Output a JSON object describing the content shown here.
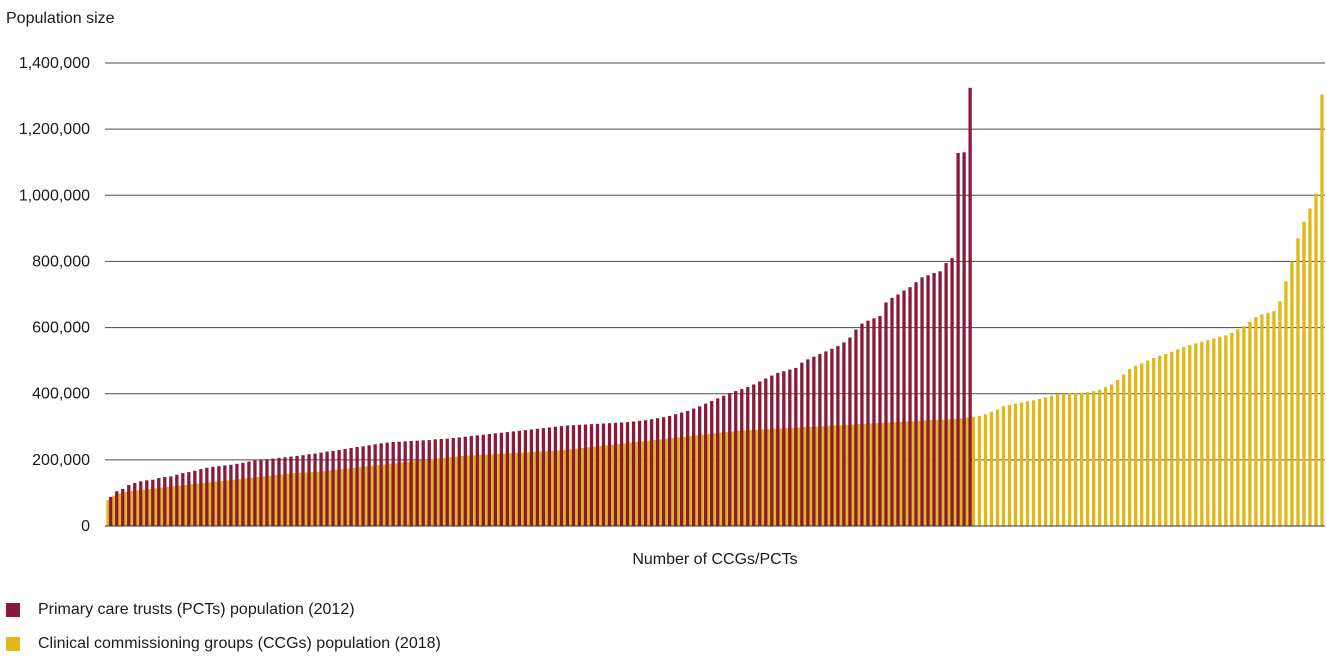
{
  "chart_data": {
    "type": "bar",
    "title": "",
    "ylabel": "Population size",
    "xlabel": "Number of CCGs/PCTs",
    "ylim": [
      0,
      1400000
    ],
    "yticks": [
      {
        "value": 0,
        "label": "0"
      },
      {
        "value": 200000,
        "label": "200,000"
      },
      {
        "value": 400000,
        "label": "400,000"
      },
      {
        "value": 600000,
        "label": "600,000"
      },
      {
        "value": 800000,
        "label": "800,000"
      },
      {
        "value": 1000000,
        "label": "1,000,000"
      },
      {
        "value": 1200000,
        "label": "1,200,000"
      },
      {
        "value": 1400000,
        "label": "1,400,000"
      }
    ],
    "grid": true,
    "legend_position": "bottom-left",
    "series": [
      {
        "name": "Primary care trusts (PCTs) population (2012)",
        "color": "#8b1a3a",
        "values": [
          88000,
          105000,
          112000,
          124000,
          130000,
          135000,
          138000,
          140000,
          145000,
          148000,
          150000,
          155000,
          160000,
          163000,
          167000,
          172000,
          176000,
          179000,
          181000,
          183000,
          185000,
          188000,
          191000,
          195000,
          198000,
          200000,
          202000,
          204000,
          206000,
          208000,
          210000,
          212000,
          214000,
          217000,
          219000,
          222000,
          225000,
          227000,
          230000,
          233000,
          236000,
          239000,
          241000,
          244000,
          247000,
          250000,
          252000,
          254000,
          255000,
          256000,
          257000,
          258000,
          259000,
          260000,
          262000,
          263000,
          264000,
          266000,
          268000,
          270000,
          272000,
          274000,
          276000,
          278000,
          280000,
          282000,
          284000,
          286000,
          288000,
          290000,
          292000,
          294000,
          296000,
          298000,
          300000,
          302000,
          304000,
          305000,
          306000,
          307000,
          308000,
          309000,
          310000,
          311000,
          312000,
          313000,
          314000,
          316000,
          318000,
          320000,
          323000,
          326000,
          329000,
          333000,
          338000,
          343000,
          348000,
          355000,
          362000,
          370000,
          378000,
          386000,
          394000,
          402000,
          408000,
          414000,
          420000,
          428000,
          437000,
          446000,
          455000,
          463000,
          468000,
          473000,
          478000,
          494000,
          504000,
          512000,
          520000,
          528000,
          536000,
          544000,
          555000,
          570000,
          594000,
          612000,
          621000,
          628000,
          635000,
          676000,
          690000,
          700000,
          712000,
          722000,
          737000,
          752000,
          758000,
          765000,
          770000,
          795000,
          810000,
          1128000,
          1130000,
          1325000
        ]
      },
      {
        "name": "Clinical commissioning groups (CCGs) population (2018)",
        "color": "#e0b818",
        "values": [
          78000,
          92000,
          98000,
          103000,
          106000,
          108000,
          110000,
          112000,
          114000,
          116000,
          118000,
          120000,
          122000,
          124000,
          126000,
          128000,
          130000,
          132000,
          134000,
          136000,
          138000,
          140000,
          142000,
          144000,
          146000,
          148000,
          150000,
          152000,
          154000,
          156000,
          158000,
          160000,
          161000,
          162000,
          163000,
          164000,
          166000,
          168000,
          170000,
          172000,
          174000,
          176000,
          178000,
          180000,
          182000,
          184000,
          186000,
          188000,
          190000,
          192000,
          194000,
          196000,
          198000,
          200000,
          202000,
          204000,
          206000,
          208000,
          210000,
          212000,
          213000,
          214000,
          215000,
          216000,
          217000,
          218000,
          219000,
          220000,
          221000,
          222000,
          223000,
          224000,
          225000,
          226000,
          227000,
          228000,
          230000,
          232000,
          234000,
          236000,
          238000,
          240000,
          242000,
          244000,
          246000,
          248000,
          250000,
          252000,
          254000,
          256000,
          258000,
          260000,
          262000,
          264000,
          266000,
          268000,
          270000,
          272000,
          274000,
          276000,
          278000,
          280000,
          282000,
          284000,
          286000,
          288000,
          289000,
          290000,
          291000,
          292000,
          293000,
          294000,
          295000,
          296000,
          297000,
          298000,
          299000,
          300000,
          301000,
          302000,
          303000,
          304000,
          305000,
          306000,
          307000,
          308000,
          309000,
          310000,
          311000,
          312000,
          313000,
          314000,
          315000,
          316000,
          317000,
          318000,
          319000,
          320000,
          321000,
          322000,
          323000,
          324000,
          326000,
          328000,
          330000,
          333000,
          338000,
          345000,
          352000,
          362000,
          366000,
          370000,
          373000,
          377000,
          380000,
          384000,
          389000,
          394000,
          398000,
          400000,
          401000,
          402000,
          403000,
          405000,
          408000,
          412000,
          420000,
          428000,
          442000,
          458000,
          475000,
          485000,
          492000,
          500000,
          508000,
          515000,
          520000,
          527000,
          534000,
          541000,
          547000,
          552000,
          557000,
          562000,
          567000,
          572000,
          576000,
          584000,
          595000,
          605000,
          618000,
          632000,
          640000,
          645000,
          650000,
          680000,
          740000,
          800000,
          870000,
          920000,
          960000,
          1005000,
          1305000
        ]
      }
    ]
  }
}
